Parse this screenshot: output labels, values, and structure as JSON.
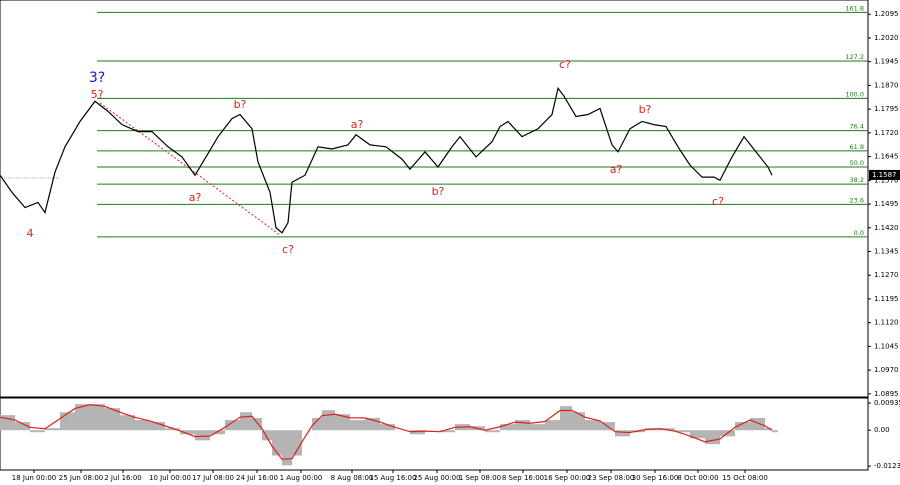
{
  "chart_data": [
    {
      "type": "line",
      "xlim": [
        0,
        868
      ],
      "ylim": [
        1.0885,
        1.214
      ],
      "yticks": [
        1.2095,
        {
          "value": 1.202,
          "label": "1.2020"
        },
        1.1945,
        {
          "value": 1.187,
          "label": "1.1870"
        },
        1.1795,
        {
          "value": 1.172,
          "label": "1.1720"
        },
        1.1645,
        {
          "value": 1.157,
          "label": "1.1570"
        },
        1.1495,
        {
          "value": 1.142,
          "label": "1.1420"
        },
        1.1345,
        {
          "value": 1.127,
          "label": "1.1270"
        },
        1.1195,
        {
          "value": 1.112,
          "label": "1.1120"
        },
        1.1045,
        {
          "value": 1.097,
          "label": "1.0970"
        },
        1.0895
      ],
      "xticks": [
        {
          "value": 34,
          "label": "18 Jun 00:00"
        },
        {
          "value": 81,
          "label": "25 Jun 08:00"
        },
        {
          "value": 123,
          "label": "2 Jul 16:00"
        },
        {
          "value": 170,
          "label": "10 Jul 00:00"
        },
        {
          "value": 213,
          "label": "17 Jul 08:00"
        },
        {
          "value": 257,
          "label": "24 Jul 16:00"
        },
        {
          "value": 301,
          "label": "1 Aug 00:00"
        },
        {
          "value": 352,
          "label": "8 Aug 08:00"
        },
        {
          "value": 393,
          "label": "15 Aug 16:00"
        },
        {
          "value": 437,
          "label": "25 Aug 00:00"
        },
        {
          "value": 480,
          "label": "1 Sep 08:00"
        },
        {
          "value": 523,
          "label": "8 Sep 16:00"
        },
        {
          "value": 567,
          "label": "16 Sep 00:00"
        },
        {
          "value": 611,
          "label": "23 Sep 08:00"
        },
        {
          "value": 655,
          "label": "30 Sep 16:00"
        },
        {
          "value": 698,
          "label": "8 Oct 00:00"
        },
        {
          "value": 745,
          "label": "15 Oct 08:00"
        }
      ],
      "x": [
        0,
        12,
        25,
        38,
        45,
        55,
        65,
        80,
        95,
        108,
        122,
        138,
        152,
        168,
        182,
        195,
        206,
        218,
        232,
        240,
        252,
        258,
        270,
        276,
        282,
        288,
        292,
        305,
        318,
        332,
        348,
        356,
        370,
        386,
        402,
        410,
        425,
        438,
        452,
        460,
        476,
        492,
        500,
        508,
        522,
        538,
        552,
        558,
        564,
        576,
        588,
        600,
        612,
        618,
        630,
        642,
        654,
        666,
        678,
        690,
        702,
        714,
        720,
        732,
        744,
        756,
        768,
        772
      ],
      "series": [
        {
          "color": "#000000",
          "values": [
            1.1586,
            1.1532,
            1.1484,
            1.15,
            1.1468,
            1.1596,
            1.1676,
            1.1756,
            1.182,
            1.1788,
            1.1746,
            1.1724,
            1.1724,
            1.1676,
            1.1644,
            1.1586,
            1.1644,
            1.1708,
            1.1765,
            1.1778,
            1.1733,
            1.1628,
            1.1532,
            1.142,
            1.1404,
            1.1436,
            1.1564,
            1.1586,
            1.1676,
            1.1669,
            1.1682,
            1.1714,
            1.1682,
            1.1676,
            1.1637,
            1.1605,
            1.166,
            1.1612,
            1.1676,
            1.1708,
            1.1644,
            1.1692,
            1.174,
            1.1756,
            1.1708,
            1.1733,
            1.1778,
            1.1861,
            1.1836,
            1.1772,
            1.1778,
            1.1797,
            1.1682,
            1.166,
            1.1733,
            1.1756,
            1.1746,
            1.174,
            1.1676,
            1.1618,
            1.158,
            1.158,
            1.157,
            1.1644,
            1.1708,
            1.166,
            1.1612,
            1.1586
          ]
        }
      ],
      "last_price": 1.1587,
      "fib_color": "#1f7a1f",
      "fib_levels": [
        {
          "label": "161.8",
          "price": 1.2101
        },
        {
          "label": "127.2",
          "price": 1.1947
        },
        {
          "label": "100.0",
          "price": 1.1829
        },
        {
          "label": "76.4",
          "price": 1.1727
        },
        {
          "label": "61.8",
          "price": 1.1663
        },
        {
          "label": "50.0",
          "price": 1.1612
        },
        {
          "label": "38.2",
          "price": 1.1558
        },
        {
          "label": "23.6",
          "price": 1.1494
        },
        {
          "label": "0.0",
          "price": 1.1391
        }
      ],
      "wave_labels": [
        "3?",
        "5?",
        "4",
        "a?",
        "b?",
        "c?",
        "a?",
        "b?",
        "c?",
        "a?",
        "b?",
        "c?"
      ]
    },
    {
      "type": "macd",
      "xlim": [
        0,
        868
      ],
      "ylim": [
        -0.0137,
        0.0111
      ],
      "yticks": [
        0.00935,
        {
          "value": 0,
          "label": "0.00"
        },
        -0.01236
      ],
      "x": [
        0,
        15,
        30,
        45,
        60,
        75,
        90,
        105,
        120,
        135,
        150,
        165,
        180,
        195,
        210,
        225,
        240,
        252,
        262,
        272,
        282,
        292,
        302,
        312,
        322,
        335,
        350,
        365,
        380,
        395,
        410,
        425,
        440,
        455,
        470,
        485,
        500,
        515,
        530,
        545,
        560,
        572,
        585,
        600,
        615,
        630,
        645,
        660,
        675,
        690,
        705,
        720,
        735,
        750,
        765,
        772
      ],
      "histogram": {
        "color": "#b4b4b4",
        "values": [
          0.0052,
          0.0028,
          -0.0007,
          0.0007,
          0.0062,
          0.009,
          0.009,
          0.0076,
          0.0052,
          0.0035,
          0.0028,
          0.0007,
          -0.0014,
          -0.0035,
          -0.0014,
          0.0035,
          0.0062,
          0.0042,
          -0.0035,
          -0.0087,
          -0.0121,
          -0.0087,
          0,
          0.0042,
          0.0069,
          0.0055,
          0.0035,
          0.0042,
          0.0021,
          0,
          -0.0014,
          0,
          -0.0007,
          0.0021,
          0.0014,
          -0.0007,
          0.0021,
          0.0035,
          0.0021,
          0.0035,
          0.0083,
          0.0062,
          0.0035,
          0.0028,
          -0.0021,
          -0.0007,
          0.0007,
          0.0007,
          -0.0007,
          -0.0028,
          -0.0048,
          -0.0021,
          0.0028,
          0.0042,
          0.0007,
          -0.0007
        ]
      },
      "signal": {
        "color": "#e0201b",
        "values": [
          0.0045,
          0.0035,
          0.001,
          0.0005,
          0.004,
          0.0075,
          0.0088,
          0.0082,
          0.0062,
          0.0044,
          0.0032,
          0.0015,
          -0.0002,
          -0.0022,
          -0.002,
          0.001,
          0.0045,
          0.0048,
          0.0005,
          -0.0055,
          -0.01,
          -0.0098,
          -0.004,
          0.0015,
          0.005,
          0.0055,
          0.0043,
          0.0042,
          0.0028,
          0.001,
          -0.0005,
          -0.0003,
          -0.0005,
          0.001,
          0.0012,
          0.0,
          0.0012,
          0.0028,
          0.0024,
          0.003,
          0.0068,
          0.0068,
          0.0045,
          0.0032,
          -0.0005,
          -0.0008,
          0.0002,
          0.0005,
          -0.0003,
          -0.002,
          -0.004,
          -0.003,
          0.001,
          0.0035,
          0.0015,
          0.0
        ]
      }
    }
  ]
}
